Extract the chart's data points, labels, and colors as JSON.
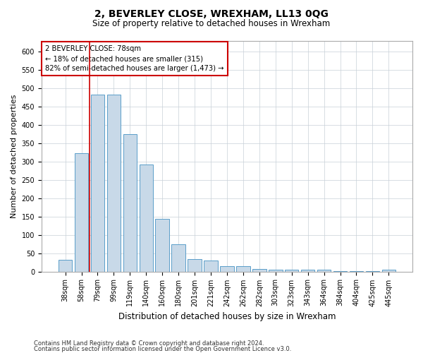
{
  "title": "2, BEVERLEY CLOSE, WREXHAM, LL13 0QG",
  "subtitle": "Size of property relative to detached houses in Wrexham",
  "xlabel": "Distribution of detached houses by size in Wrexham",
  "ylabel": "Number of detached properties",
  "footnote1": "Contains HM Land Registry data © Crown copyright and database right 2024.",
  "footnote2": "Contains public sector information licensed under the Open Government Licence v3.0.",
  "categories": [
    "38sqm",
    "58sqm",
    "79sqm",
    "99sqm",
    "119sqm",
    "140sqm",
    "160sqm",
    "180sqm",
    "201sqm",
    "221sqm",
    "242sqm",
    "262sqm",
    "282sqm",
    "303sqm",
    "323sqm",
    "343sqm",
    "364sqm",
    "384sqm",
    "404sqm",
    "425sqm",
    "445sqm"
  ],
  "values": [
    32,
    322,
    483,
    483,
    375,
    291,
    143,
    75,
    33,
    30,
    15,
    15,
    7,
    4,
    4,
    4,
    4,
    1,
    1,
    1,
    5
  ],
  "bar_color": "#c8d9e8",
  "bar_edge_color": "#5a9ec9",
  "annotation_line1": "2 BEVERLEY CLOSE: 78sqm",
  "annotation_line2": "← 18% of detached houses are smaller (315)",
  "annotation_line3": "82% of semi-detached houses are larger (1,473) →",
  "vline_x": 1.5,
  "annotation_box_color": "#cc0000",
  "ylim": [
    0,
    630
  ],
  "yticks": [
    0,
    50,
    100,
    150,
    200,
    250,
    300,
    350,
    400,
    450,
    500,
    550,
    600
  ],
  "background_color": "#ffffff",
  "grid_color": "#c8d0d8",
  "title_fontsize": 10,
  "subtitle_fontsize": 8.5,
  "tick_fontsize": 7,
  "ylabel_fontsize": 8,
  "xlabel_fontsize": 8.5
}
